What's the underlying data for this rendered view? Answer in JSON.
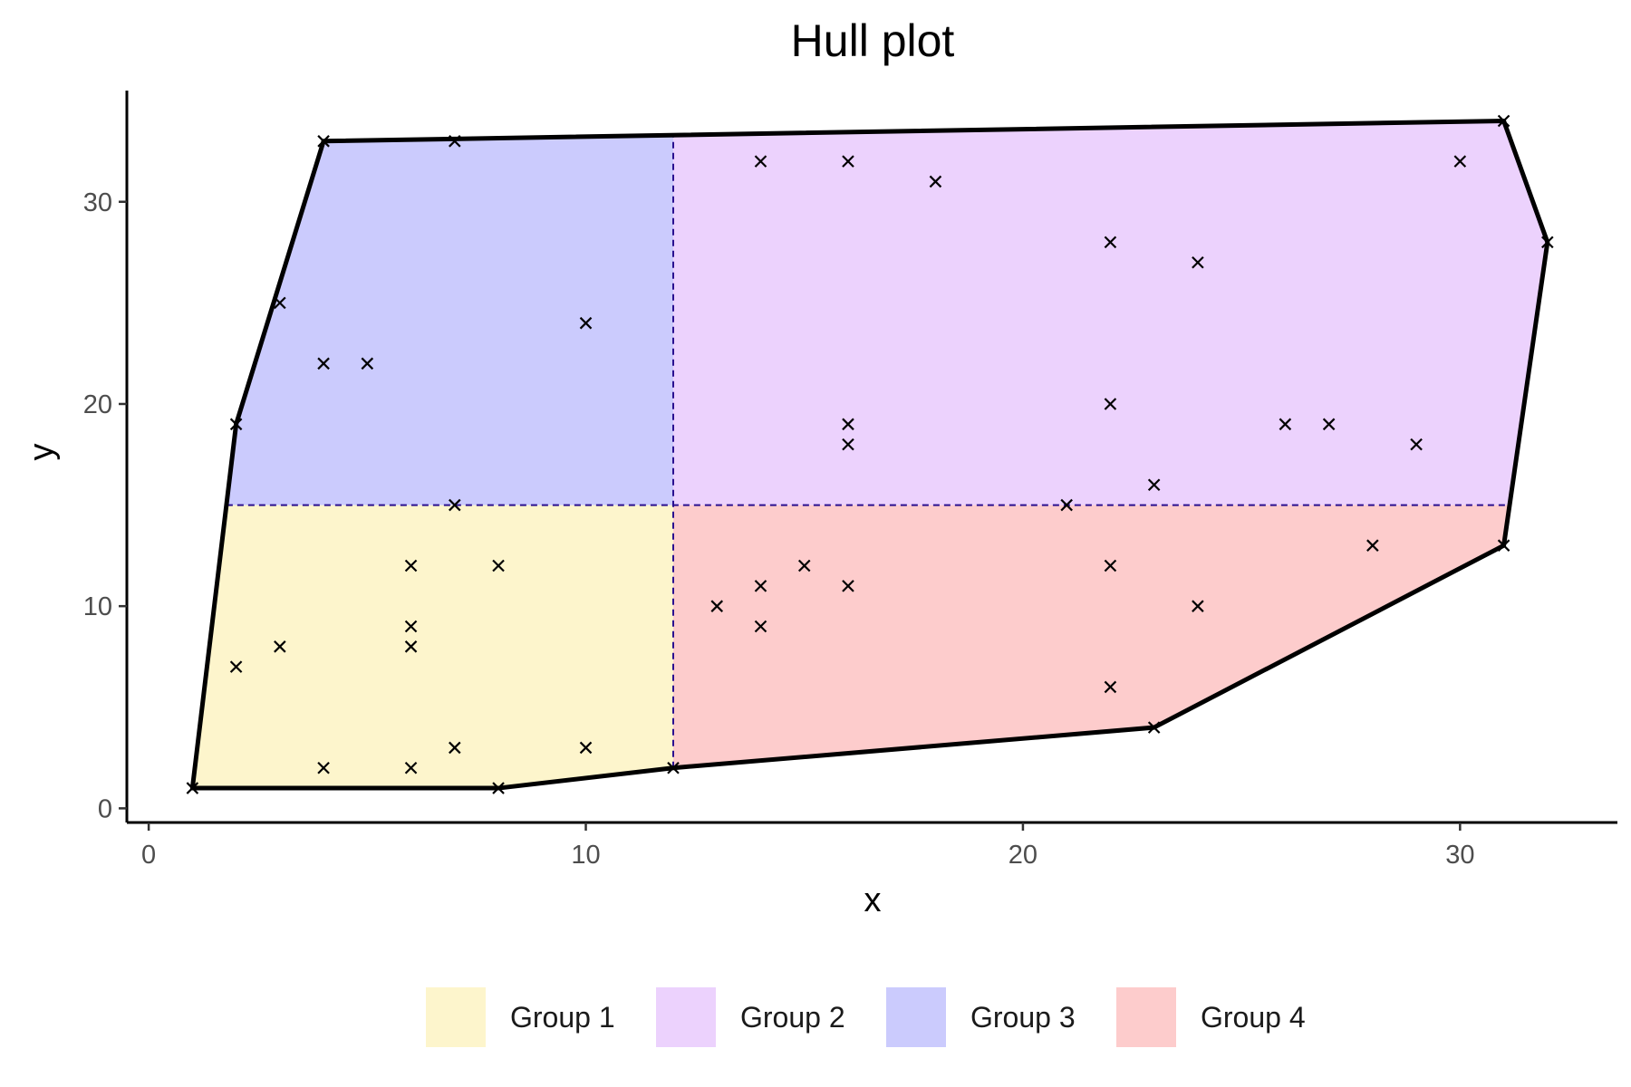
{
  "chart_data": {
    "type": "scatter",
    "title": "Hull plot",
    "xlabel": "x",
    "ylabel": "y",
    "xlim": [
      -0.5,
      33.6
    ],
    "ylim": [
      -0.7,
      35.5
    ],
    "xticks": [
      0,
      10,
      20,
      30
    ],
    "yticks": [
      0,
      10,
      20,
      30
    ],
    "grid": false,
    "legend_position": "bottom",
    "divider": {
      "x": 12,
      "y": 15
    },
    "hull": [
      [
        1,
        1
      ],
      [
        8,
        1
      ],
      [
        12,
        2
      ],
      [
        23,
        4
      ],
      [
        31,
        13
      ],
      [
        32,
        28
      ],
      [
        31,
        34
      ],
      [
        4,
        33
      ],
      [
        2,
        19
      ]
    ],
    "groups": [
      {
        "name": "Group 1",
        "color": "#fdf5cc"
      },
      {
        "name": "Group 2",
        "color": "#ecd2fd"
      },
      {
        "name": "Group 3",
        "color": "#cbcbfd"
      },
      {
        "name": "Group 4",
        "color": "#fdcccc"
      }
    ],
    "points": [
      [
        1,
        1
      ],
      [
        2,
        7
      ],
      [
        3,
        8
      ],
      [
        4,
        2
      ],
      [
        6,
        2
      ],
      [
        6,
        8
      ],
      [
        6,
        9
      ],
      [
        6,
        12
      ],
      [
        7,
        3
      ],
      [
        8,
        1
      ],
      [
        8,
        12
      ],
      [
        10,
        3
      ],
      [
        12,
        2
      ],
      [
        2,
        19
      ],
      [
        3,
        25
      ],
      [
        4,
        22
      ],
      [
        4,
        33
      ],
      [
        5,
        22
      ],
      [
        7,
        33
      ],
      [
        7,
        15
      ],
      [
        10,
        24
      ],
      [
        14,
        32
      ],
      [
        16,
        32
      ],
      [
        18,
        31
      ],
      [
        16,
        19
      ],
      [
        16,
        18
      ],
      [
        22,
        28
      ],
      [
        22,
        20
      ],
      [
        24,
        27
      ],
      [
        23,
        16
      ],
      [
        21,
        15
      ],
      [
        26,
        19
      ],
      [
        27,
        19
      ],
      [
        29,
        18
      ],
      [
        30,
        32
      ],
      [
        31,
        34
      ],
      [
        32,
        28
      ],
      [
        13,
        10
      ],
      [
        14,
        11
      ],
      [
        14,
        9
      ],
      [
        15,
        12
      ],
      [
        16,
        11
      ],
      [
        22,
        12
      ],
      [
        22,
        6
      ],
      [
        24,
        10
      ],
      [
        28,
        13
      ],
      [
        23,
        4
      ],
      [
        31,
        13
      ]
    ]
  }
}
